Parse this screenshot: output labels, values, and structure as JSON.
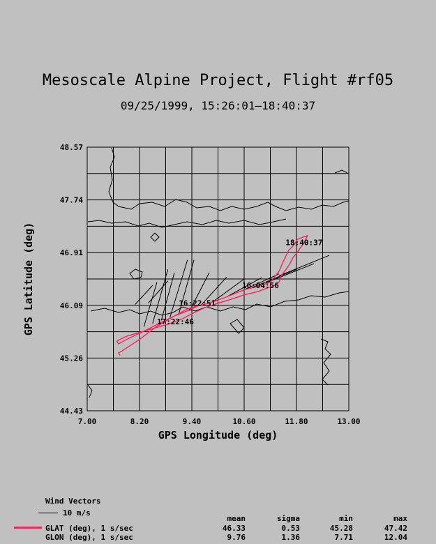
{
  "title": "Mesoscale Alpine Project, Flight #rf05",
  "subtitle": "09/25/1999, 15:26:01–18:40:37",
  "chart_data": {
    "type": "line",
    "xlabel": "GPS Longitude (deg)",
    "ylabel": "GPS Latitude (deg)",
    "xlim": [
      7.0,
      13.0
    ],
    "ylim": [
      44.43,
      48.57
    ],
    "x_ticks": [
      "7.00",
      "8.20",
      "9.40",
      "10.60",
      "11.80",
      "13.00"
    ],
    "y_ticks": [
      "44.43",
      "45.26",
      "46.09",
      "46.91",
      "47.74",
      "48.57"
    ],
    "grid": true,
    "series": [
      {
        "name": "GLAT (deg), 1 s/sec",
        "color": "#ff2060",
        "lon": [
          7.75,
          7.72,
          7.8,
          8.2,
          8.6,
          9.0,
          9.3,
          9.55,
          9.8,
          10.2,
          10.6,
          10.9,
          11.2,
          11.4,
          11.5,
          11.62,
          11.7,
          11.75,
          11.82,
          11.92,
          12.05,
          12.0,
          11.9,
          11.8,
          11.72,
          11.65,
          11.55,
          11.45,
          11.4,
          11.3,
          11.1,
          10.9,
          10.6,
          10.3,
          10.0,
          9.7,
          9.45,
          9.2,
          8.9,
          8.6,
          8.2,
          7.9,
          7.75,
          7.68,
          7.72,
          7.9,
          8.3,
          8.7,
          9.0,
          9.3,
          9.55
        ],
        "lat": [
          45.3,
          45.34,
          45.37,
          45.55,
          45.76,
          45.92,
          46.03,
          46.08,
          46.12,
          46.22,
          46.33,
          46.38,
          46.45,
          46.62,
          46.78,
          46.95,
          47.0,
          47.04,
          47.12,
          47.15,
          47.18,
          47.1,
          47.0,
          46.9,
          46.84,
          46.74,
          46.64,
          46.55,
          46.45,
          46.4,
          46.35,
          46.3,
          46.25,
          46.18,
          46.12,
          46.05,
          45.97,
          45.88,
          45.8,
          45.74,
          45.66,
          45.6,
          45.55,
          45.52,
          45.48,
          45.55,
          45.68,
          45.82,
          45.92,
          46.0,
          46.08
        ]
      }
    ],
    "annotations": [
      {
        "text": "18:40:37",
        "lon": 11.55,
        "lat": 47.03
      },
      {
        "text": "16:04:56",
        "lon": 10.55,
        "lat": 46.36
      },
      {
        "text": "16:22:51",
        "lon": 9.1,
        "lat": 46.08
      },
      {
        "text": "17:22:46",
        "lon": 8.6,
        "lat": 45.79
      }
    ],
    "wind_vectors": [
      {
        "lon": 8.3,
        "lat": 45.75,
        "dlon": 0.3,
        "dlat": 0.7
      },
      {
        "lon": 8.5,
        "lat": 45.8,
        "dlon": 0.35,
        "dlat": 0.85
      },
      {
        "lon": 8.7,
        "lat": 45.85,
        "dlon": 0.3,
        "dlat": 0.75
      },
      {
        "lon": 8.9,
        "lat": 45.9,
        "dlon": 0.4,
        "dlat": 0.9
      },
      {
        "lon": 9.1,
        "lat": 45.95,
        "dlon": 0.35,
        "dlat": 0.85
      },
      {
        "lon": 9.35,
        "lat": 46.0,
        "dlon": 0.45,
        "dlat": 0.6
      },
      {
        "lon": 9.6,
        "lat": 46.08,
        "dlon": 0.6,
        "dlat": 0.45
      },
      {
        "lon": 9.9,
        "lat": 46.15,
        "dlon": 0.7,
        "dlat": 0.35
      },
      {
        "lon": 10.2,
        "lat": 46.22,
        "dlon": 0.8,
        "dlat": 0.3
      },
      {
        "lon": 10.5,
        "lat": 46.3,
        "dlon": 0.9,
        "dlat": 0.28
      },
      {
        "lon": 10.8,
        "lat": 46.37,
        "dlon": 1.0,
        "dlat": 0.28
      },
      {
        "lon": 11.1,
        "lat": 46.44,
        "dlon": 1.1,
        "dlat": 0.3
      },
      {
        "lon": 11.4,
        "lat": 46.55,
        "dlon": 1.15,
        "dlat": 0.32
      },
      {
        "lon": 8.1,
        "lat": 46.1,
        "dlon": 0.4,
        "dlat": 0.3
      },
      {
        "lon": 8.4,
        "lat": 46.12,
        "dlon": 0.45,
        "dlat": 0.35
      }
    ]
  },
  "legend": {
    "wind_title": "Wind Vectors",
    "wind_scale": "10 m/s",
    "headers": {
      "mean": "mean",
      "sigma": "sigma",
      "min": "min",
      "max": "max"
    },
    "rows": [
      {
        "label": "GLAT (deg), 1 s/sec",
        "mean": "46.33",
        "sigma": "0.53",
        "min": "45.28",
        "max": "47.42"
      },
      {
        "label": "GLON (deg), 1 s/sec",
        "mean": "9.76",
        "sigma": "1.36",
        "min": "7.71",
        "max": "12.04"
      }
    ]
  },
  "colors": {
    "background": "#c0c0c0",
    "track": "#ff2060",
    "ink": "#000000"
  }
}
